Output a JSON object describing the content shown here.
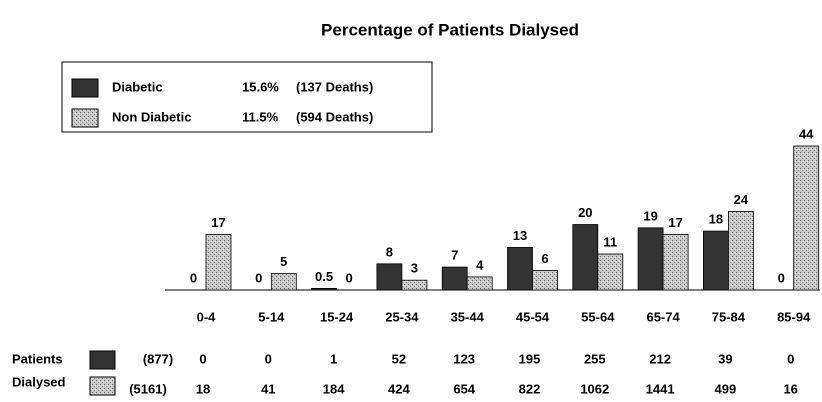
{
  "chart_data": {
    "type": "bar",
    "title": "Percentage of Patients Dialysed",
    "categories": [
      "0-4",
      "5-14",
      "15-24",
      "25-34",
      "35-44",
      "45-54",
      "55-64",
      "65-74",
      "75-84",
      "85-94"
    ],
    "series": [
      {
        "name": "Diabetic",
        "color": "#333333",
        "rate_label": "15.6%",
        "deaths_label": "(137 Deaths)",
        "values": [
          0,
          0,
          0.5,
          8,
          7,
          13,
          20,
          19,
          18,
          0
        ]
      },
      {
        "name": "Non Diabetic",
        "color": "#bbbbbb",
        "rate_label": "11.5%",
        "deaths_label": "(594 Deaths)",
        "values": [
          17,
          5,
          0,
          3,
          4,
          6,
          11,
          17,
          24,
          44
        ]
      }
    ],
    "table": {
      "row_title": [
        "Patients",
        "Dialysed"
      ],
      "rows": [
        {
          "total": "(877)",
          "values": [
            0,
            0,
            1,
            52,
            123,
            195,
            255,
            212,
            39,
            0
          ]
        },
        {
          "total": "(5161)",
          "values": [
            18,
            41,
            184,
            424,
            654,
            822,
            1062,
            1441,
            499,
            16
          ]
        }
      ]
    }
  }
}
